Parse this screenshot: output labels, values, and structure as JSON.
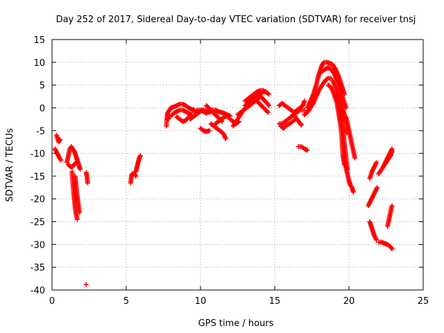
{
  "chart_data": {
    "type": "scatter",
    "title": "Day 252 of 2017, Sidereal Day-to-day VTEC variation (SDTVAR) for receiver tnsj",
    "xlabel": "GPS time / hours",
    "ylabel": "SDTVAR / TECUs",
    "xlim": [
      0,
      25
    ],
    "ylim": [
      -40,
      15
    ],
    "xticks": [
      0,
      5,
      10,
      15,
      20,
      25
    ],
    "yticks": [
      -40,
      -35,
      -30,
      -25,
      -20,
      -15,
      -10,
      -5,
      0,
      5,
      10,
      15
    ],
    "grid": true,
    "marker": "plus",
    "color": "#ff0000",
    "segments": [
      [
        [
          0.3,
          -6.0
        ],
        [
          0.45,
          -7.5
        ],
        [
          0.55,
          -7.0
        ]
      ],
      [
        [
          0.2,
          -9.0
        ],
        [
          0.35,
          -10.0
        ],
        [
          0.5,
          -11.0
        ],
        [
          0.6,
          -11.5
        ]
      ],
      [
        [
          1.0,
          -12.0
        ],
        [
          1.1,
          -10.5
        ],
        [
          1.2,
          -9.0
        ],
        [
          1.3,
          -8.5
        ],
        [
          1.4,
          -9.0
        ],
        [
          1.5,
          -9.5
        ],
        [
          1.6,
          -10.5
        ],
        [
          1.7,
          -11.5
        ],
        [
          1.8,
          -12.5
        ],
        [
          1.9,
          -13.5
        ]
      ],
      [
        [
          1.1,
          -12.5
        ],
        [
          1.2,
          -12.8
        ],
        [
          1.3,
          -13.0
        ],
        [
          1.4,
          -12.8
        ],
        [
          1.5,
          -12.5
        ],
        [
          1.6,
          -12.0
        ]
      ],
      [
        [
          1.35,
          -14.0
        ],
        [
          1.4,
          -16.5
        ],
        [
          1.45,
          -18.5
        ],
        [
          1.5,
          -20.0
        ],
        [
          1.55,
          -21.5
        ],
        [
          1.6,
          -23.0
        ],
        [
          1.7,
          -24.5
        ]
      ],
      [
        [
          1.55,
          -15.0
        ],
        [
          1.62,
          -17.0
        ],
        [
          1.7,
          -19.5
        ],
        [
          1.78,
          -21.5
        ],
        [
          1.85,
          -23.0
        ]
      ],
      [
        [
          2.3,
          -14.2
        ],
        [
          2.35,
          -15.0
        ],
        [
          2.4,
          -16.5
        ]
      ],
      [
        [
          2.3,
          -38.8
        ]
      ],
      [
        [
          5.3,
          -16.5
        ],
        [
          5.35,
          -15.0
        ],
        [
          5.4,
          -14.5
        ],
        [
          5.55,
          -14.5
        ],
        [
          5.65,
          -15.0
        ]
      ],
      [
        [
          5.65,
          -14.0
        ],
        [
          5.72,
          -13.0
        ],
        [
          5.8,
          -12.0
        ],
        [
          5.88,
          -11.0
        ],
        [
          5.95,
          -10.5
        ]
      ],
      [
        [
          7.7,
          -4.0
        ],
        [
          7.75,
          -2.0
        ],
        [
          7.8,
          -1.0
        ],
        [
          7.9,
          -0.5
        ],
        [
          8.0,
          0.0
        ],
        [
          8.2,
          0.2
        ],
        [
          8.4,
          0.5
        ],
        [
          8.6,
          0.8
        ],
        [
          8.8,
          0.8
        ],
        [
          9.0,
          0.5
        ],
        [
          9.2,
          0.0
        ],
        [
          9.4,
          -0.3
        ],
        [
          9.6,
          -0.5
        ]
      ],
      [
        [
          7.8,
          -2.5
        ],
        [
          8.0,
          -1.8
        ],
        [
          8.2,
          -1.2
        ],
        [
          8.4,
          -0.8
        ],
        [
          8.6,
          -0.5
        ],
        [
          8.8,
          -0.5
        ],
        [
          9.0,
          -0.8
        ],
        [
          9.2,
          -1.2
        ],
        [
          9.4,
          -1.5
        ]
      ],
      [
        [
          8.4,
          -2.0
        ],
        [
          8.6,
          -2.5
        ],
        [
          8.8,
          -3.0
        ],
        [
          9.0,
          -2.8
        ],
        [
          9.2,
          -2.0
        ],
        [
          9.4,
          -1.5
        ]
      ],
      [
        [
          9.3,
          -2.5
        ],
        [
          9.5,
          -2.0
        ],
        [
          9.7,
          -1.5
        ],
        [
          9.9,
          -1.0
        ],
        [
          10.1,
          -0.5
        ],
        [
          10.3,
          -0.5
        ],
        [
          10.5,
          -1.0
        ]
      ],
      [
        [
          9.6,
          -1.0
        ],
        [
          9.8,
          -0.5
        ],
        [
          10.0,
          -0.5
        ],
        [
          10.2,
          -0.8
        ],
        [
          10.4,
          -1.2
        ]
      ],
      [
        [
          10.0,
          -4.5
        ],
        [
          10.2,
          -5.0
        ],
        [
          10.4,
          -5.2
        ],
        [
          10.6,
          -5.0
        ]
      ],
      [
        [
          10.4,
          0.5
        ],
        [
          10.55,
          0.0
        ],
        [
          10.7,
          -0.5
        ],
        [
          10.85,
          -1.0
        ],
        [
          11.0,
          -1.5
        ],
        [
          11.15,
          -2.0
        ],
        [
          11.3,
          -2.5
        ],
        [
          11.45,
          -3.0
        ]
      ],
      [
        [
          10.6,
          -1.0
        ],
        [
          10.8,
          -0.5
        ],
        [
          11.0,
          -0.5
        ],
        [
          11.2,
          -0.8
        ],
        [
          11.4,
          -1.0
        ],
        [
          11.6,
          -1.2
        ],
        [
          11.8,
          -1.5
        ],
        [
          12.0,
          -1.8
        ]
      ],
      [
        [
          10.7,
          -3.5
        ],
        [
          10.9,
          -4.0
        ],
        [
          11.1,
          -4.5
        ],
        [
          11.3,
          -5.0
        ],
        [
          11.5,
          -5.5
        ],
        [
          11.6,
          -6.0
        ],
        [
          11.7,
          -6.8
        ]
      ],
      [
        [
          11.0,
          -3.5
        ],
        [
          11.2,
          -3.0
        ],
        [
          11.4,
          -2.5
        ],
        [
          11.6,
          -2.0
        ],
        [
          11.8,
          -1.8
        ],
        [
          12.0,
          -2.5
        ],
        [
          12.2,
          -3.0
        ],
        [
          12.4,
          -3.5
        ],
        [
          12.6,
          -3.0
        ]
      ],
      [
        [
          12.2,
          -4.0
        ],
        [
          12.3,
          -3.5
        ],
        [
          12.4,
          -3.0
        ],
        [
          12.5,
          -2.5
        ],
        [
          12.6,
          -2.0
        ],
        [
          12.7,
          -1.5
        ],
        [
          12.8,
          -1.0
        ],
        [
          12.9,
          -0.5
        ],
        [
          13.0,
          0.0
        ],
        [
          13.2,
          0.5
        ],
        [
          13.4,
          1.0
        ]
      ],
      [
        [
          12.5,
          -1.5
        ],
        [
          12.7,
          -1.0
        ],
        [
          12.9,
          -0.5
        ],
        [
          13.1,
          0.0
        ],
        [
          13.3,
          0.5
        ],
        [
          13.5,
          1.0
        ],
        [
          13.7,
          1.5
        ],
        [
          13.9,
          2.0
        ],
        [
          14.0,
          2.5
        ]
      ],
      [
        [
          13.0,
          0.5
        ],
        [
          13.2,
          1.0
        ],
        [
          13.4,
          1.5
        ],
        [
          13.6,
          2.0
        ],
        [
          13.8,
          2.5
        ],
        [
          14.0,
          3.0
        ],
        [
          14.2,
          3.5
        ],
        [
          14.4,
          3.5
        ]
      ],
      [
        [
          13.0,
          1.5
        ],
        [
          13.2,
          2.0
        ],
        [
          13.4,
          2.5
        ],
        [
          13.6,
          3.0
        ],
        [
          13.8,
          3.5
        ],
        [
          14.0,
          3.8
        ],
        [
          14.2,
          3.8
        ],
        [
          14.4,
          3.5
        ],
        [
          14.6,
          3.0
        ]
      ],
      [
        [
          13.8,
          1.5
        ],
        [
          13.95,
          1.0
        ],
        [
          14.1,
          0.5
        ],
        [
          14.25,
          0.0
        ],
        [
          14.4,
          -0.5
        ],
        [
          14.55,
          -1.0
        ]
      ],
      [
        [
          13.9,
          3.0
        ],
        [
          14.05,
          2.5
        ],
        [
          14.2,
          2.0
        ],
        [
          14.35,
          1.5
        ],
        [
          14.5,
          1.0
        ],
        [
          14.6,
          0.5
        ]
      ],
      [
        [
          15.3,
          0.5
        ],
        [
          15.5,
          1.0
        ],
        [
          15.7,
          0.5
        ],
        [
          15.9,
          0.0
        ],
        [
          16.1,
          -0.5
        ],
        [
          16.3,
          -1.0
        ],
        [
          16.5,
          -0.5
        ],
        [
          16.7,
          0.0
        ],
        [
          16.9,
          0.5
        ],
        [
          17.0,
          1.5
        ]
      ],
      [
        [
          15.3,
          -3.5
        ],
        [
          15.5,
          -3.5
        ],
        [
          15.7,
          -3.0
        ],
        [
          15.9,
          -2.5
        ],
        [
          16.1,
          -2.0
        ],
        [
          16.3,
          -1.5
        ],
        [
          16.5,
          -1.0
        ],
        [
          16.7,
          -0.5
        ],
        [
          16.9,
          -0.5
        ],
        [
          17.0,
          -0.5
        ]
      ],
      [
        [
          15.4,
          -4.0
        ],
        [
          15.6,
          -4.5
        ],
        [
          15.8,
          -3.8
        ],
        [
          16.0,
          -3.5
        ],
        [
          16.2,
          -3.0
        ],
        [
          16.4,
          -2.5
        ]
      ],
      [
        [
          16.2,
          -1.5
        ],
        [
          16.35,
          -1.8
        ],
        [
          16.5,
          -2.5
        ],
        [
          16.65,
          -3.2
        ],
        [
          16.8,
          -3.8
        ]
      ],
      [
        [
          16.6,
          -8.5
        ],
        [
          16.8,
          -8.5
        ],
        [
          17.0,
          -9.0
        ],
        [
          17.2,
          -9.3
        ]
      ],
      [
        [
          17.0,
          -1.5
        ],
        [
          17.2,
          -1.0
        ],
        [
          17.4,
          0.0
        ],
        [
          17.6,
          1.0
        ],
        [
          17.8,
          2.5
        ],
        [
          18.0,
          4.0
        ],
        [
          18.2,
          5.0
        ],
        [
          18.4,
          6.0
        ],
        [
          18.6,
          6.5
        ],
        [
          18.8,
          6.5
        ]
      ],
      [
        [
          17.2,
          0.0
        ],
        [
          17.4,
          1.5
        ],
        [
          17.6,
          3.0
        ],
        [
          17.8,
          5.0
        ],
        [
          17.9,
          6.5
        ],
        [
          18.0,
          7.5
        ],
        [
          18.1,
          8.5
        ],
        [
          18.2,
          9.5
        ],
        [
          18.3,
          10.0
        ],
        [
          18.5,
          10.0
        ],
        [
          18.7,
          9.8
        ],
        [
          18.9,
          9.5
        ],
        [
          19.1,
          8.5
        ],
        [
          19.3,
          7.0
        ],
        [
          19.5,
          5.0
        ],
        [
          19.7,
          3.0
        ]
      ],
      [
        [
          18.2,
          8.0
        ],
        [
          18.4,
          8.5
        ],
        [
          18.6,
          8.8
        ],
        [
          18.8,
          8.5
        ],
        [
          19.0,
          7.5
        ],
        [
          19.2,
          6.0
        ],
        [
          19.4,
          4.0
        ],
        [
          19.6,
          2.0
        ],
        [
          19.8,
          0.0
        ]
      ],
      [
        [
          18.6,
          5.0
        ],
        [
          18.8,
          4.5
        ],
        [
          19.0,
          3.0
        ],
        [
          19.2,
          1.0
        ],
        [
          19.3,
          -1.0
        ],
        [
          19.4,
          -3.0
        ],
        [
          19.5,
          -5.5
        ],
        [
          19.55,
          -8.0
        ],
        [
          19.6,
          -10.5
        ],
        [
          19.7,
          -12.5
        ]
      ],
      [
        [
          18.9,
          6.0
        ],
        [
          19.1,
          4.5
        ],
        [
          19.3,
          2.5
        ],
        [
          19.5,
          0.5
        ],
        [
          19.7,
          -1.5
        ],
        [
          19.8,
          -3.5
        ],
        [
          19.85,
          -5.5
        ]
      ],
      [
        [
          19.2,
          3.0
        ],
        [
          19.35,
          1.0
        ],
        [
          19.5,
          -2.0
        ],
        [
          19.6,
          -5.0
        ],
        [
          19.7,
          -8.0
        ],
        [
          19.8,
          -11.0
        ],
        [
          19.9,
          -13.5
        ]
      ],
      [
        [
          19.6,
          -10.5
        ],
        [
          19.75,
          -12.5
        ],
        [
          19.9,
          -14.5
        ],
        [
          20.0,
          -16.0
        ],
        [
          20.1,
          -17.0
        ],
        [
          20.2,
          -17.5
        ],
        [
          20.3,
          -18.5
        ]
      ],
      [
        [
          19.8,
          -2.0
        ],
        [
          19.9,
          -3.5
        ],
        [
          20.0,
          -5.0
        ],
        [
          20.1,
          -6.5
        ],
        [
          20.2,
          -8.0
        ],
        [
          20.3,
          -9.5
        ],
        [
          20.4,
          -11.0
        ]
      ],
      [
        [
          21.3,
          -21.5
        ],
        [
          21.45,
          -20.5
        ],
        [
          21.6,
          -19.5
        ],
        [
          21.75,
          -18.5
        ],
        [
          21.9,
          -17.5
        ]
      ],
      [
        [
          21.4,
          -15.5
        ],
        [
          21.55,
          -14.0
        ],
        [
          21.7,
          -13.0
        ],
        [
          21.85,
          -12.0
        ]
      ],
      [
        [
          21.4,
          -25.0
        ],
        [
          21.5,
          -26.0
        ],
        [
          21.6,
          -27.0
        ],
        [
          21.7,
          -28.0
        ],
        [
          21.85,
          -29.0
        ]
      ],
      [
        [
          22.0,
          -29.5
        ],
        [
          22.2,
          -29.5
        ],
        [
          22.4,
          -29.8
        ],
        [
          22.6,
          -30.0
        ],
        [
          22.8,
          -30.5
        ],
        [
          22.9,
          -31.0
        ]
      ],
      [
        [
          22.0,
          -14.5
        ],
        [
          22.2,
          -13.5
        ],
        [
          22.4,
          -12.5
        ],
        [
          22.6,
          -11.5
        ],
        [
          22.8,
          -10.5
        ],
        [
          22.9,
          -9.5
        ]
      ],
      [
        [
          22.3,
          -13.0
        ],
        [
          22.45,
          -12.0
        ],
        [
          22.6,
          -11.0
        ],
        [
          22.75,
          -10.0
        ],
        [
          22.9,
          -9.0
        ]
      ],
      [
        [
          22.6,
          -26.0
        ],
        [
          22.7,
          -24.5
        ],
        [
          22.8,
          -23.0
        ],
        [
          22.9,
          -21.5
        ]
      ]
    ]
  }
}
